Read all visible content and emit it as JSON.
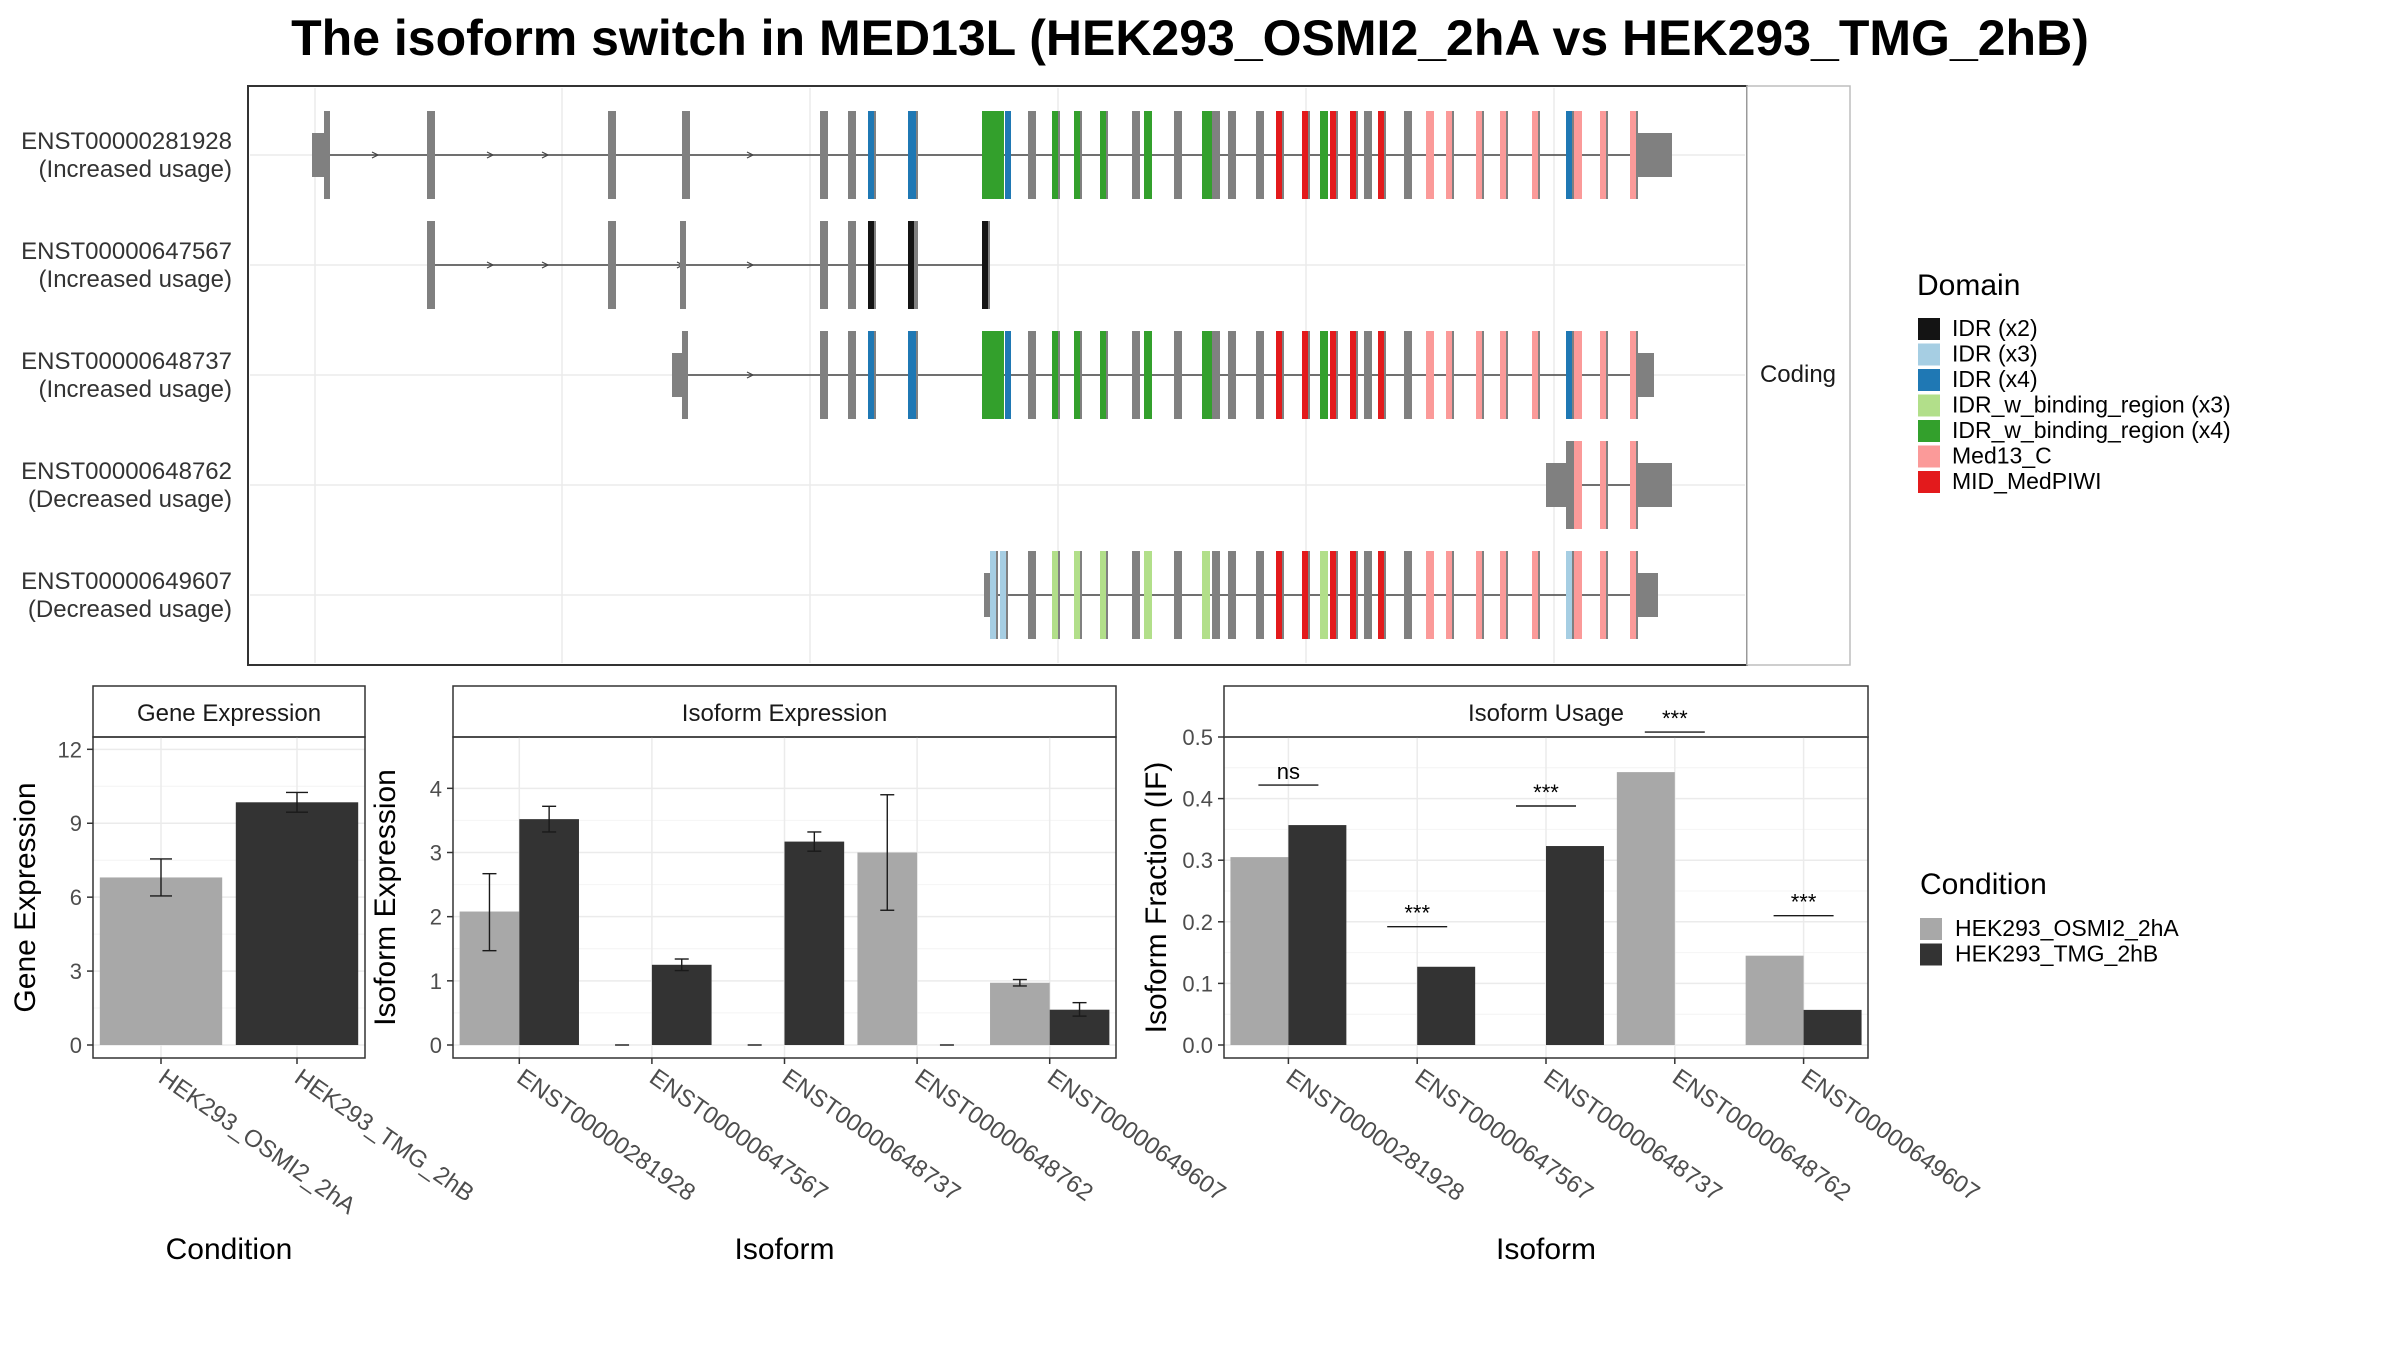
{
  "title": "The isoform switch in MED13L (HEK293_OSMI2_2hA vs HEK293_TMG_2hB)",
  "colors": {
    "exon": "#808080",
    "intron": "#444444",
    "cond1": "#a8a8a8",
    "cond2": "#333333",
    "panel_border": "#333333",
    "strip_fill": "#ffffff",
    "grid": "#ebebeb",
    "domains": {
      "IDR (x2)": "#141414",
      "IDR (x3)": "#a6cee3",
      "IDR (x4)": "#1f78b4",
      "IDR_w_binding_region (x3)": "#b2df8a",
      "IDR_w_binding_region (x4)": "#33a02c",
      "Med13_C": "#fb9a99",
      "MID_MedPIWI": "#e31a1c"
    }
  },
  "structure_panel": {
    "facet_label": "Coding",
    "isoforms": [
      {
        "id": "ENST00000281928",
        "usage": "(Increased usage)"
      },
      {
        "id": "ENST00000647567",
        "usage": "(Increased usage)"
      },
      {
        "id": "ENST00000648737",
        "usage": "(Increased usage)"
      },
      {
        "id": "ENST00000648762",
        "usage": "(Decreased usage)"
      },
      {
        "id": "ENST00000649607",
        "usage": "(Decreased usage)"
      }
    ]
  },
  "legend_domain": {
    "title": "Domain",
    "entries": [
      "IDR (x2)",
      "IDR (x3)",
      "IDR (x4)",
      "IDR_w_binding_region (x3)",
      "IDR_w_binding_region (x4)",
      "Med13_C",
      "MID_MedPIWI"
    ]
  },
  "legend_condition": {
    "title": "Condition",
    "entries": [
      "HEK293_OSMI2_2hA",
      "HEK293_TMG_2hB"
    ]
  },
  "chart_data": [
    {
      "type": "bar",
      "title": "Gene Expression",
      "xlabel": "Condition",
      "ylabel": "Gene Expression",
      "ylim": [
        0,
        12.5
      ],
      "yticks": [
        0,
        3,
        6,
        9,
        12
      ],
      "categories": [
        "HEK293_OSMI2_2hA",
        "HEK293_TMG_2hB"
      ],
      "values": [
        6.8,
        9.85
      ],
      "errors": [
        [
          6.05,
          7.55
        ],
        [
          9.45,
          10.25
        ]
      ]
    },
    {
      "type": "bar",
      "title": "Isoform Expression",
      "xlabel": "Isoform",
      "ylabel": "Isoform Expression",
      "ylim": [
        0,
        4.8
      ],
      "yticks": [
        0,
        1,
        2,
        3,
        4
      ],
      "categories": [
        "ENST00000281928",
        "ENST00000647567",
        "ENST00000648737",
        "ENST00000648762",
        "ENST00000649607"
      ],
      "series": [
        {
          "name": "HEK293_OSMI2_2hA",
          "values": [
            2.08,
            0,
            0,
            3.0,
            0.97
          ],
          "errors": [
            [
              1.47,
              2.67
            ],
            [
              0,
              0
            ],
            [
              0,
              0
            ],
            [
              2.1,
              3.9
            ],
            [
              0.92,
              1.02
            ]
          ]
        },
        {
          "name": "HEK293_TMG_2hB",
          "values": [
            3.52,
            1.25,
            3.17,
            0,
            0.55
          ],
          "errors": [
            [
              3.32,
              3.72
            ],
            [
              1.16,
              1.34
            ],
            [
              3.02,
              3.32
            ],
            [
              0,
              0
            ],
            [
              0.45,
              0.66
            ]
          ]
        }
      ]
    },
    {
      "type": "bar",
      "title": "Isoform Usage",
      "xlabel": "Isoform",
      "ylabel": "Isoform Fraction (IF)",
      "ylim": [
        0,
        0.5
      ],
      "yticks": [
        "0.0",
        "0.1",
        "0.2",
        "0.3",
        "0.4",
        "0.5"
      ],
      "categories": [
        "ENST00000281928",
        "ENST00000647567",
        "ENST00000648737",
        "ENST00000648762",
        "ENST00000649607"
      ],
      "series": [
        {
          "name": "HEK293_OSMI2_2hA",
          "values": [
            0.305,
            0,
            0,
            0.443,
            0.145
          ]
        },
        {
          "name": "HEK293_TMG_2hB",
          "values": [
            0.357,
            0.127,
            0.323,
            0,
            0.057
          ]
        }
      ],
      "significance": [
        "ns",
        "***",
        "***",
        "***",
        "***"
      ]
    }
  ]
}
